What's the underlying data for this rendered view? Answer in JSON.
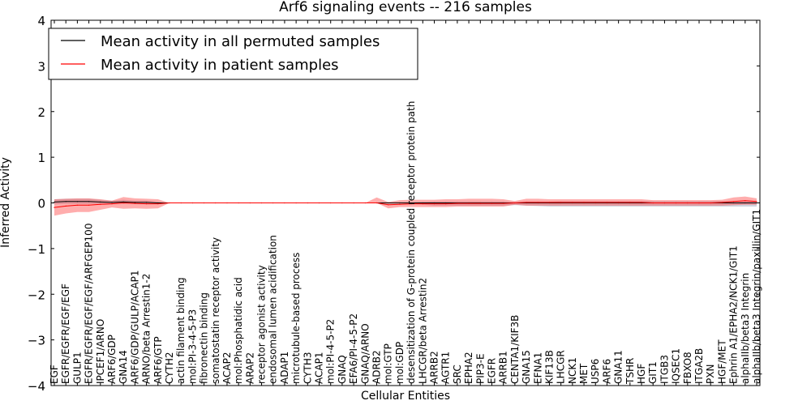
{
  "chart_data": {
    "type": "line",
    "title": "Arf6 signaling events -- 216 samples",
    "xlabel": "Cellular Entities",
    "ylabel": "Inferred Activity",
    "ylim": [
      -4,
      4
    ],
    "yticks": [
      4,
      3,
      2,
      1,
      0,
      -1,
      -2,
      -3,
      -4
    ],
    "ytick_labels": [
      "4",
      "3",
      "2",
      "1",
      "0",
      "−1",
      "−2",
      "−3",
      "−4"
    ],
    "grid": false,
    "legend_position": "top-left",
    "categories": [
      "EGF",
      "EGFR/EGFR/EGF/EGF",
      "GULP1",
      "EGFR/EGFR/EGF/EGF/ARFGEP100",
      "IPCEF1/ARNO",
      "ARF6/GDP",
      "GNA14",
      "ARF6/GDP/GULP/ACAP1",
      "ARNO/beta Arrestin1-2",
      "ARF6/GTP",
      "CYTH2",
      "actin filament binding",
      "mol:PI-3-4-5-P3",
      "fibronectin binding",
      "somatostatin receptor activity",
      "ACAP2",
      "mol:Phosphatidic acid",
      "ARAP2",
      "receptor agonist activity",
      "endosomal lumen acidification",
      "ADAP1",
      "microtubule-based process",
      "CYTH3",
      "ACAP1",
      "mol:PI-4-5-P2",
      "GNAQ",
      "EFA6/PI-4-5-P2",
      "GNAQ/ARNO",
      "ADRB2",
      "mol:GTP",
      "mol:GDP",
      "desensitization of G-protein coupled receptor protein path",
      "LHCGR/beta Arrestin2",
      "ARRB2",
      "AGTR1",
      "SRC",
      "EPHA2",
      "PIP3-E",
      "EGFR",
      "ARRB1",
      "CENTA1/KIF3B",
      "GNA15",
      "EFNA1",
      "KIF13B",
      "LHCGR",
      "NCK1",
      "MET",
      "USP6",
      "ARF6",
      "GNA11",
      "TSHR",
      "HGF",
      "GIT1",
      "ITGB3",
      "IQSEC1",
      "FBXO8",
      "ITGA2B",
      "PXN",
      "HGF/MET",
      "Ephrin A1/EPHA2/NCK1/GIT1",
      "alphaIIb/beta3 Integrin",
      "alphaIIb/beta3 Integrin/paxillin/GIT1"
    ],
    "series": [
      {
        "name": "Mean activity in all permuted samples",
        "color": "#000000",
        "values": [
          0.02,
          0.03,
          0.03,
          0.03,
          0.02,
          0.01,
          0.02,
          0.01,
          0.01,
          0.0,
          0.0,
          0.0,
          0.0,
          0.0,
          0.0,
          0.0,
          0.0,
          0.0,
          0.0,
          0.0,
          0.0,
          0.0,
          0.0,
          0.0,
          0.0,
          0.0,
          0.0,
          0.0,
          0.0,
          0.0,
          0.0,
          0.0,
          0.0,
          0.0,
          0.0,
          0.0,
          0.0,
          0.0,
          0.0,
          0.0,
          0.0,
          0.0,
          0.0,
          0.0,
          0.0,
          0.0,
          0.0,
          0.0,
          0.0,
          0.0,
          0.0,
          0.0,
          0.0,
          0.0,
          0.0,
          0.0,
          0.0,
          0.0,
          0.0,
          0.0,
          0.0,
          0.0
        ],
        "band_upper": [
          0.08,
          0.09,
          0.09,
          0.09,
          0.07,
          0.05,
          0.07,
          0.05,
          0.05,
          0.02,
          0.0,
          0.0,
          0.0,
          0.0,
          0.0,
          0.0,
          0.0,
          0.0,
          0.0,
          0.0,
          0.0,
          0.0,
          0.0,
          0.0,
          0.0,
          0.0,
          0.0,
          0.0,
          0.0,
          0.0,
          0.0,
          0.01,
          0.02,
          0.03,
          0.03,
          0.03,
          0.03,
          0.03,
          0.03,
          0.03,
          0.02,
          0.03,
          0.03,
          0.03,
          0.04,
          0.04,
          0.04,
          0.04,
          0.04,
          0.04,
          0.04,
          0.04,
          0.04,
          0.04,
          0.04,
          0.04,
          0.04,
          0.04,
          0.04,
          0.04,
          0.04,
          0.04
        ],
        "band_lower": [
          -0.03,
          -0.02,
          -0.02,
          -0.02,
          -0.02,
          -0.02,
          -0.02,
          -0.02,
          -0.02,
          -0.01,
          0.0,
          0.0,
          0.0,
          0.0,
          0.0,
          0.0,
          0.0,
          0.0,
          0.0,
          0.0,
          0.0,
          0.0,
          0.0,
          0.0,
          0.0,
          0.0,
          0.0,
          0.0,
          0.0,
          0.0,
          0.0,
          -0.02,
          -0.04,
          -0.06,
          -0.06,
          -0.06,
          -0.06,
          -0.06,
          -0.06,
          -0.06,
          -0.05,
          -0.06,
          -0.07,
          -0.08,
          -0.08,
          -0.08,
          -0.08,
          -0.08,
          -0.08,
          -0.08,
          -0.08,
          -0.08,
          -0.08,
          -0.08,
          -0.08,
          -0.08,
          -0.08,
          -0.08,
          -0.08,
          -0.08,
          -0.08,
          -0.08
        ]
      },
      {
        "name": "Mean activity in patient samples",
        "color": "#ff0000",
        "values": [
          -0.1,
          -0.07,
          -0.05,
          -0.05,
          -0.03,
          -0.02,
          0.0,
          -0.01,
          -0.02,
          -0.02,
          0.0,
          0.0,
          0.0,
          0.0,
          0.0,
          0.0,
          0.0,
          0.0,
          0.0,
          0.0,
          0.0,
          0.0,
          0.0,
          0.0,
          0.0,
          0.0,
          0.0,
          0.0,
          0.0,
          -0.04,
          -0.03,
          -0.02,
          -0.02,
          -0.02,
          -0.02,
          -0.01,
          -0.01,
          -0.01,
          -0.01,
          -0.01,
          0.0,
          0.01,
          0.01,
          0.01,
          0.01,
          0.01,
          0.01,
          0.01,
          0.01,
          0.01,
          0.01,
          0.01,
          0.0,
          0.0,
          0.0,
          0.0,
          0.0,
          0.0,
          0.01,
          0.03,
          0.05,
          0.03
        ],
        "band_upper": [
          0.08,
          0.09,
          0.1,
          0.1,
          0.08,
          0.05,
          0.13,
          0.1,
          0.09,
          0.08,
          0.0,
          0.0,
          0.0,
          0.0,
          0.0,
          0.0,
          0.0,
          0.0,
          0.0,
          0.0,
          0.0,
          0.0,
          0.0,
          0.0,
          0.0,
          0.0,
          0.0,
          0.0,
          0.12,
          0.02,
          0.06,
          0.07,
          0.07,
          0.07,
          0.08,
          0.08,
          0.09,
          0.09,
          0.09,
          0.08,
          0.04,
          0.09,
          0.09,
          0.08,
          0.08,
          0.08,
          0.08,
          0.08,
          0.08,
          0.08,
          0.08,
          0.08,
          0.06,
          0.06,
          0.06,
          0.06,
          0.06,
          0.06,
          0.07,
          0.12,
          0.14,
          0.1
        ],
        "band_lower": [
          -0.28,
          -0.23,
          -0.2,
          -0.2,
          -0.15,
          -0.1,
          -0.13,
          -0.12,
          -0.13,
          -0.12,
          0.0,
          0.0,
          0.0,
          0.0,
          0.0,
          0.0,
          0.0,
          0.0,
          0.0,
          0.0,
          0.0,
          0.0,
          0.0,
          0.0,
          0.0,
          0.0,
          0.0,
          0.0,
          0.0,
          -0.12,
          -0.09,
          -0.09,
          -0.09,
          -0.09,
          -0.09,
          -0.08,
          -0.08,
          -0.08,
          -0.08,
          -0.08,
          -0.04,
          -0.06,
          -0.06,
          -0.06,
          -0.06,
          -0.06,
          -0.06,
          -0.06,
          -0.06,
          -0.06,
          -0.06,
          -0.06,
          -0.06,
          -0.06,
          -0.06,
          -0.06,
          -0.06,
          -0.06,
          -0.06,
          -0.05,
          -0.04,
          -0.04
        ]
      }
    ]
  }
}
